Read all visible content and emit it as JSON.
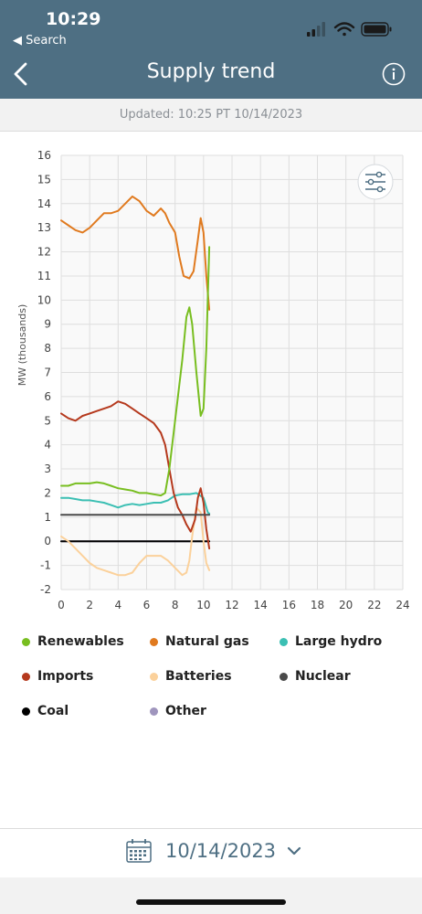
{
  "status_bar": {
    "time": "10:29",
    "back_label": "◀ Search"
  },
  "nav": {
    "title": "Supply trend"
  },
  "updated": {
    "text": "Updated: 10:25 PT 10/14/2023"
  },
  "footer": {
    "date": "10/14/2023"
  },
  "icons": {
    "back": "chevron-left-icon",
    "info": "info-icon",
    "filter": "sliders-icon",
    "calendar": "calendar-icon",
    "dropdown": "chevron-down-icon"
  },
  "colors": {
    "header": "#4e6f83",
    "renewables": "#78be20",
    "natural_gas": "#e07a1f",
    "large_hydro": "#3bbfb3",
    "imports": "#b5391d",
    "batteries": "#fbd19b",
    "nuclear": "#4a4a4a",
    "coal": "#000000",
    "other": "#9f95bd"
  },
  "chart_data": {
    "type": "line",
    "title": "",
    "xlabel": "",
    "ylabel": "MW (thousands)",
    "xlim": [
      0,
      24
    ],
    "ylim": [
      -2,
      16
    ],
    "x_ticks": [
      0,
      2,
      4,
      6,
      8,
      10,
      12,
      14,
      16,
      18,
      20,
      22,
      24
    ],
    "y_ticks": [
      -2,
      -1,
      0,
      1,
      2,
      3,
      4,
      5,
      6,
      7,
      8,
      9,
      10,
      11,
      12,
      13,
      14,
      15,
      16
    ],
    "grid": true,
    "legend_position": "bottom",
    "series": [
      {
        "name": "Renewables",
        "color": "#78be20",
        "points": [
          [
            0,
            2.3
          ],
          [
            0.5,
            2.3
          ],
          [
            1,
            2.4
          ],
          [
            1.5,
            2.4
          ],
          [
            2,
            2.4
          ],
          [
            2.5,
            2.45
          ],
          [
            3,
            2.4
          ],
          [
            3.5,
            2.3
          ],
          [
            4,
            2.2
          ],
          [
            4.5,
            2.15
          ],
          [
            5,
            2.1
          ],
          [
            5.5,
            2.0
          ],
          [
            6,
            2.0
          ],
          [
            6.5,
            1.95
          ],
          [
            7,
            1.9
          ],
          [
            7.3,
            2.0
          ],
          [
            7.6,
            3.0
          ],
          [
            7.9,
            4.5
          ],
          [
            8.2,
            6.0
          ],
          [
            8.5,
            7.5
          ],
          [
            8.8,
            9.3
          ],
          [
            9.0,
            9.7
          ],
          [
            9.2,
            9.0
          ],
          [
            9.5,
            7.0
          ],
          [
            9.8,
            5.2
          ],
          [
            10.0,
            5.5
          ],
          [
            10.2,
            8.0
          ],
          [
            10.4,
            12.2
          ]
        ]
      },
      {
        "name": "Natural gas",
        "color": "#e07a1f",
        "points": [
          [
            0,
            13.3
          ],
          [
            0.5,
            13.1
          ],
          [
            1,
            12.9
          ],
          [
            1.5,
            12.8
          ],
          [
            2,
            13.0
          ],
          [
            2.5,
            13.3
          ],
          [
            3,
            13.6
          ],
          [
            3.5,
            13.6
          ],
          [
            4,
            13.7
          ],
          [
            4.5,
            14.0
          ],
          [
            5,
            14.3
          ],
          [
            5.5,
            14.1
          ],
          [
            6,
            13.7
          ],
          [
            6.5,
            13.5
          ],
          [
            7,
            13.8
          ],
          [
            7.3,
            13.6
          ],
          [
            7.6,
            13.2
          ],
          [
            8,
            12.8
          ],
          [
            8.3,
            11.8
          ],
          [
            8.6,
            11.0
          ],
          [
            9.0,
            10.9
          ],
          [
            9.3,
            11.2
          ],
          [
            9.6,
            12.5
          ],
          [
            9.8,
            13.4
          ],
          [
            10.0,
            12.8
          ],
          [
            10.2,
            11.0
          ],
          [
            10.4,
            9.6
          ]
        ]
      },
      {
        "name": "Large hydro",
        "color": "#3bbfb3",
        "points": [
          [
            0,
            1.8
          ],
          [
            0.5,
            1.8
          ],
          [
            1,
            1.75
          ],
          [
            1.5,
            1.7
          ],
          [
            2,
            1.7
          ],
          [
            2.5,
            1.65
          ],
          [
            3,
            1.6
          ],
          [
            3.5,
            1.5
          ],
          [
            4,
            1.4
          ],
          [
            4.5,
            1.5
          ],
          [
            5,
            1.55
          ],
          [
            5.5,
            1.5
          ],
          [
            6,
            1.55
          ],
          [
            6.5,
            1.6
          ],
          [
            7,
            1.6
          ],
          [
            7.5,
            1.7
          ],
          [
            8,
            1.9
          ],
          [
            8.5,
            1.95
          ],
          [
            9,
            1.95
          ],
          [
            9.5,
            2.0
          ],
          [
            10,
            1.8
          ],
          [
            10.3,
            1.2
          ],
          [
            10.4,
            1.15
          ]
        ]
      },
      {
        "name": "Imports",
        "color": "#b5391d",
        "points": [
          [
            0,
            5.3
          ],
          [
            0.5,
            5.1
          ],
          [
            1,
            5.0
          ],
          [
            1.5,
            5.2
          ],
          [
            2,
            5.3
          ],
          [
            2.5,
            5.4
          ],
          [
            3,
            5.5
          ],
          [
            3.5,
            5.6
          ],
          [
            4,
            5.8
          ],
          [
            4.5,
            5.7
          ],
          [
            5,
            5.5
          ],
          [
            5.5,
            5.3
          ],
          [
            6,
            5.1
          ],
          [
            6.5,
            4.9
          ],
          [
            7,
            4.5
          ],
          [
            7.3,
            4.0
          ],
          [
            7.6,
            3.0
          ],
          [
            7.9,
            2.0
          ],
          [
            8.2,
            1.4
          ],
          [
            8.5,
            1.1
          ],
          [
            8.8,
            0.7
          ],
          [
            9.1,
            0.4
          ],
          [
            9.4,
            0.9
          ],
          [
            9.6,
            1.8
          ],
          [
            9.8,
            2.2
          ],
          [
            10.0,
            1.6
          ],
          [
            10.2,
            0.5
          ],
          [
            10.4,
            -0.3
          ]
        ]
      },
      {
        "name": "Batteries",
        "color": "#fbd19b",
        "points": [
          [
            0,
            0.2
          ],
          [
            0.5,
            0.0
          ],
          [
            1,
            -0.3
          ],
          [
            1.5,
            -0.6
          ],
          [
            2,
            -0.9
          ],
          [
            2.5,
            -1.1
          ],
          [
            3,
            -1.2
          ],
          [
            3.5,
            -1.3
          ],
          [
            4,
            -1.4
          ],
          [
            4.5,
            -1.4
          ],
          [
            5,
            -1.3
          ],
          [
            5.5,
            -0.9
          ],
          [
            6,
            -0.6
          ],
          [
            6.5,
            -0.6
          ],
          [
            7,
            -0.6
          ],
          [
            7.5,
            -0.8
          ],
          [
            8,
            -1.1
          ],
          [
            8.5,
            -1.4
          ],
          [
            8.8,
            -1.3
          ],
          [
            9.0,
            -0.8
          ],
          [
            9.2,
            0.2
          ],
          [
            9.5,
            1.4
          ],
          [
            9.8,
            1.2
          ],
          [
            10.0,
            0.0
          ],
          [
            10.2,
            -0.9
          ],
          [
            10.4,
            -1.2
          ]
        ]
      },
      {
        "name": "Nuclear",
        "color": "#4a4a4a",
        "points": [
          [
            0,
            1.1
          ],
          [
            2,
            1.1
          ],
          [
            4,
            1.1
          ],
          [
            6,
            1.1
          ],
          [
            8,
            1.1
          ],
          [
            10,
            1.1
          ],
          [
            10.4,
            1.1
          ]
        ]
      },
      {
        "name": "Coal",
        "color": "#000000",
        "points": [
          [
            0,
            0.0
          ],
          [
            10.4,
            0.0
          ]
        ]
      },
      {
        "name": "Other",
        "color": "#9f95bd",
        "points": [
          [
            0,
            0.0
          ],
          [
            2,
            0.0
          ],
          [
            4,
            0.0
          ],
          [
            6,
            0.0
          ],
          [
            8,
            0.0
          ],
          [
            10,
            0.0
          ],
          [
            10.4,
            0.0
          ]
        ]
      }
    ]
  }
}
